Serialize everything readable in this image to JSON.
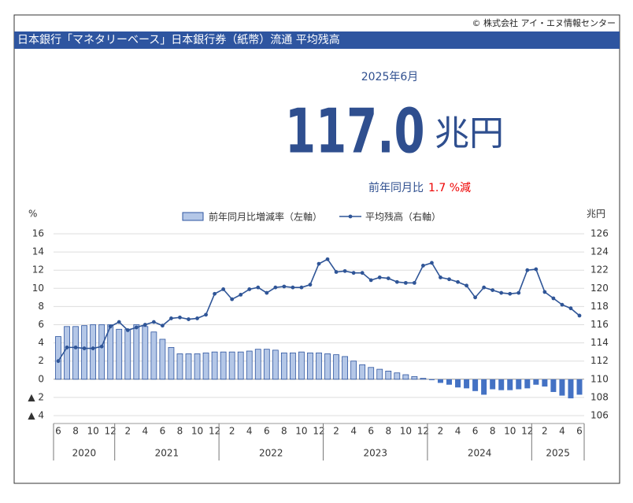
{
  "header": {
    "copyright": "© 株式会社 アイ・エヌ情報センター",
    "title": "日本銀行「マネタリーベース」日本銀行券（紙幣）流通 平均残高",
    "period": "2025年6月",
    "amount": "117.0",
    "unit": "兆円",
    "change_label": "前年同月比",
    "change_value": "1.7 %減"
  },
  "chart_data": {
    "type": "bar",
    "y_unit": "%",
    "y2_unit": "兆円",
    "categories": [
      "6",
      null,
      "8",
      null,
      "10",
      null,
      "12",
      null,
      "2",
      null,
      "4",
      null,
      "6",
      null,
      "8",
      null,
      "10",
      null,
      "12",
      null,
      "2",
      null,
      "4",
      null,
      "6",
      null,
      "8",
      null,
      "10",
      null,
      "12",
      null,
      "2",
      null,
      "4",
      null,
      "6",
      null,
      "8",
      null,
      "10",
      null,
      "12",
      null,
      "2",
      null,
      "4",
      null,
      "6",
      null,
      "8",
      null,
      "10",
      null,
      "12",
      null,
      "2",
      null,
      "4",
      null,
      "6"
    ],
    "years": [
      "2020",
      "2021",
      "2022",
      "2023",
      "2024",
      "2025"
    ],
    "series": [
      {
        "name": "前年同月比増減率（左軸）",
        "type": "bar",
        "axis": "y",
        "color": "#b4c7e7",
        "border_color": "#2e55a0",
        "negative_color": "#4472c4",
        "values": [
          4.7,
          5.8,
          5.8,
          5.9,
          6.0,
          6.0,
          6.0,
          5.5,
          5.5,
          6.0,
          5.8,
          5.2,
          4.4,
          3.5,
          2.8,
          2.8,
          2.8,
          2.9,
          3.0,
          3.0,
          3.0,
          3.0,
          3.1,
          3.3,
          3.3,
          3.2,
          2.9,
          2.9,
          3.0,
          2.9,
          2.9,
          2.8,
          2.7,
          2.5,
          2.0,
          1.6,
          1.3,
          1.1,
          0.9,
          0.7,
          0.5,
          0.3,
          0.1,
          -0.1,
          -0.4,
          -0.6,
          -0.9,
          -1.0,
          -1.3,
          -1.7,
          -1.1,
          -1.2,
          -1.2,
          -1.1,
          -1.0,
          -0.6,
          -0.8,
          -1.4,
          -1.8,
          -2.1,
          -1.7
        ]
      },
      {
        "name": "平均残高（右軸）",
        "type": "line",
        "axis": "y2",
        "color": "#2f5597",
        "values": [
          112.0,
          113.5,
          113.5,
          113.4,
          113.4,
          113.6,
          115.8,
          116.3,
          115.4,
          115.7,
          116.0,
          116.3,
          115.9,
          116.7,
          116.8,
          116.6,
          116.7,
          117.1,
          119.4,
          119.9,
          118.8,
          119.3,
          119.9,
          120.1,
          119.5,
          120.1,
          120.2,
          120.1,
          120.1,
          120.4,
          122.7,
          123.2,
          121.8,
          121.9,
          121.7,
          121.7,
          120.9,
          121.2,
          121.1,
          120.7,
          120.6,
          120.6,
          122.5,
          122.8,
          121.2,
          121.0,
          120.7,
          120.3,
          119.0,
          120.1,
          119.8,
          119.5,
          119.4,
          119.5,
          122.0,
          122.1,
          119.6,
          118.9,
          118.2,
          117.8,
          117.0
        ]
      }
    ],
    "ylim": [
      -4,
      16
    ],
    "yticks": [
      {
        "value": -4,
        "label": "▲ 4"
      },
      {
        "value": -2,
        "label": "▲ 2"
      },
      0,
      2,
      4,
      6,
      8,
      10,
      12,
      14,
      16
    ],
    "y2lim": [
      106,
      126
    ],
    "y2ticks": [
      106,
      108,
      110,
      112,
      114,
      116,
      118,
      120,
      122,
      124,
      126
    ],
    "grid": true,
    "legend": "top"
  }
}
